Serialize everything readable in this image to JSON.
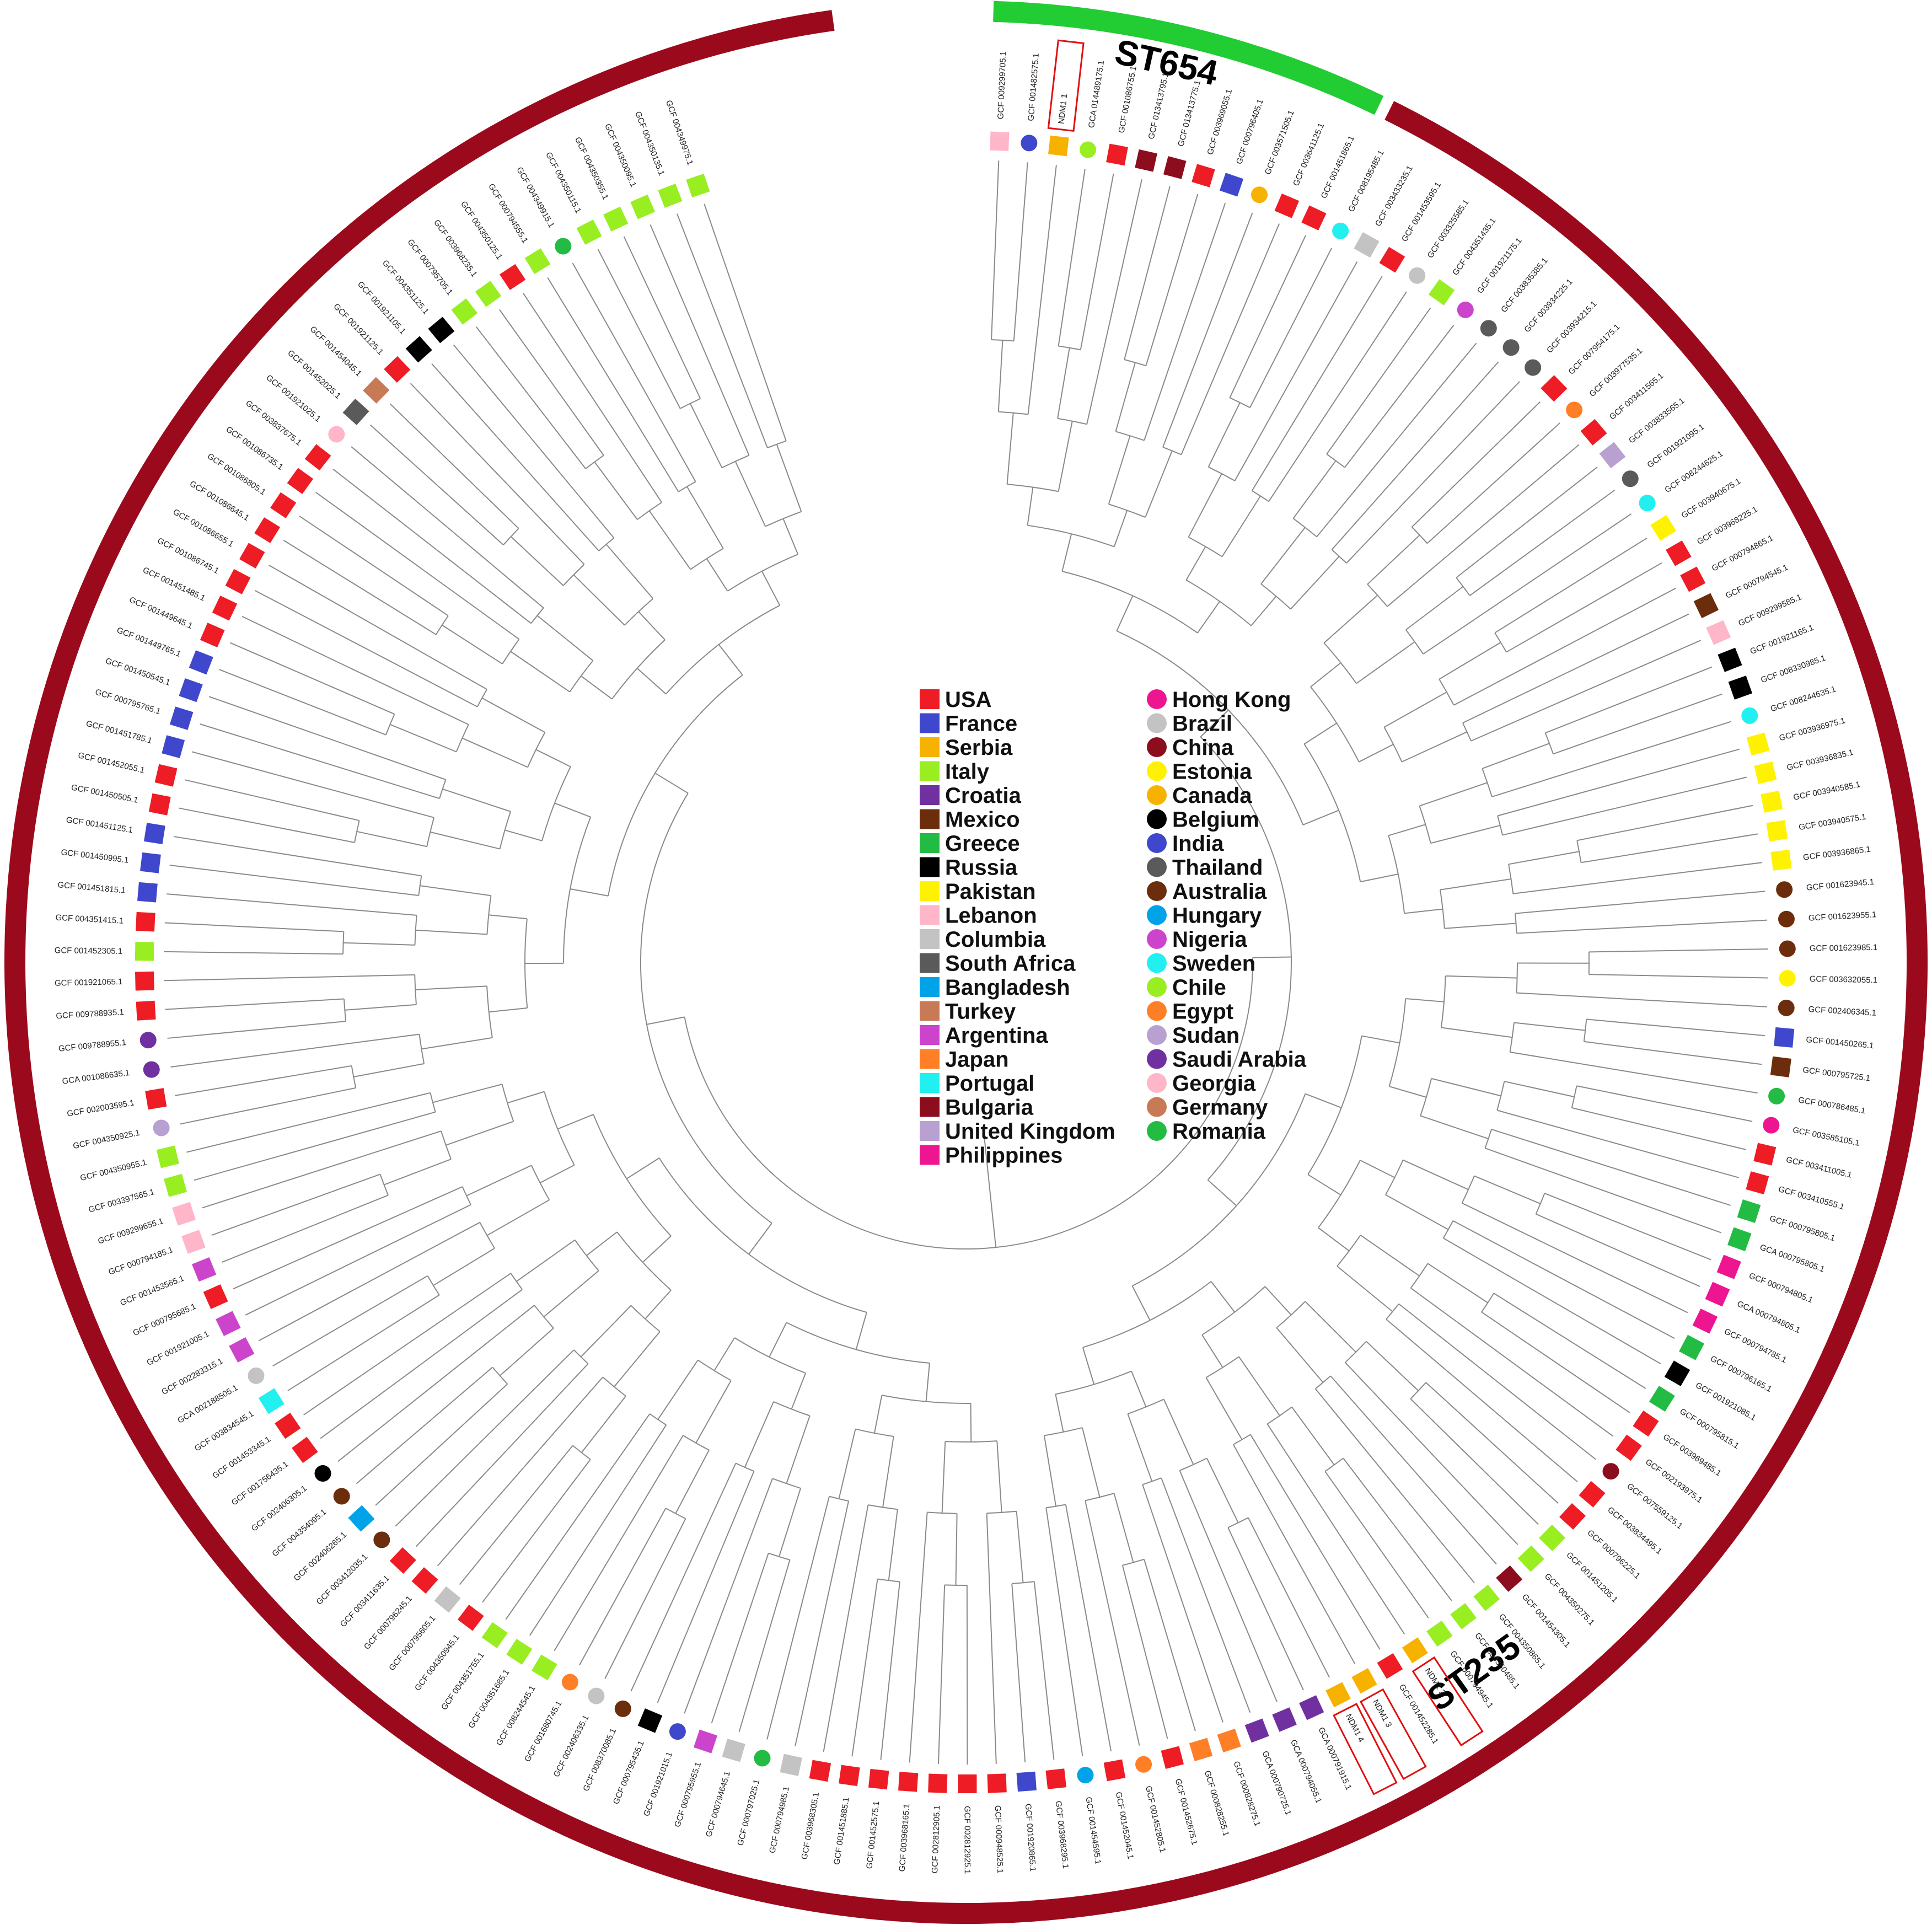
{
  "clades": [
    {
      "name": "ST654",
      "color": "#22cc33",
      "start_index": 0,
      "end_index": 11
    },
    {
      "name": "ST235",
      "color": "#9b0a1c",
      "start_index": 12,
      "end_index": 169
    }
  ],
  "legend": {
    "squares": [
      {
        "label": "USA",
        "color": "#ee1c24"
      },
      {
        "label": "France",
        "color": "#3f48cc"
      },
      {
        "label": "Serbia",
        "color": "#f7b200"
      },
      {
        "label": "Italy",
        "color": "#99ee22"
      },
      {
        "label": "Croatia",
        "color": "#7030a0"
      },
      {
        "label": "Mexico",
        "color": "#6b2d0c"
      },
      {
        "label": "Greece",
        "color": "#22bb44"
      },
      {
        "label": "Russia",
        "color": "#000000"
      },
      {
        "label": "Pakistan",
        "color": "#fff200"
      },
      {
        "label": "Lebanon",
        "color": "#ffb6c8"
      },
      {
        "label": "Columbia",
        "color": "#c3c3c3"
      },
      {
        "label": "South Africa",
        "color": "#5a5a5a"
      },
      {
        "label": "Bangladesh",
        "color": "#00a2e8"
      },
      {
        "label": "Turkey",
        "color": "#c77a55"
      },
      {
        "label": "Argentina",
        "color": "#cc44cc"
      },
      {
        "label": "Japan",
        "color": "#ff7f27"
      },
      {
        "label": "Portugal",
        "color": "#22f0f0"
      },
      {
        "label": "Bulgaria",
        "color": "#8b0d1e"
      },
      {
        "label": "United Kingdom",
        "color": "#b8a0d0"
      },
      {
        "label": "Philippines",
        "color": "#ee1590"
      }
    ],
    "circles": [
      {
        "label": "Hong Kong",
        "color": "#ee1590"
      },
      {
        "label": "Brazil",
        "color": "#c3c3c3"
      },
      {
        "label": "China",
        "color": "#8b0d1e"
      },
      {
        "label": "Estonia",
        "color": "#fff200"
      },
      {
        "label": "Canada",
        "color": "#f7b200"
      },
      {
        "label": "Belgium",
        "color": "#000000"
      },
      {
        "label": "India",
        "color": "#3f48cc"
      },
      {
        "label": "Thailand",
        "color": "#5a5a5a"
      },
      {
        "label": "Australia",
        "color": "#6b2d0c"
      },
      {
        "label": "Hungary",
        "color": "#00a2e8"
      },
      {
        "label": "Nigeria",
        "color": "#cc44cc"
      },
      {
        "label": "Sweden",
        "color": "#22f0f0"
      },
      {
        "label": "Chile",
        "color": "#99ee22"
      },
      {
        "label": "Egypt",
        "color": "#ff7f27"
      },
      {
        "label": "Sudan",
        "color": "#b8a0d0"
      },
      {
        "label": "Saudi Arabia",
        "color": "#7030a0"
      },
      {
        "label": "Georgia",
        "color": "#ffb6c8"
      },
      {
        "label": "Germany",
        "color": "#c77a55"
      },
      {
        "label": "Romania",
        "color": "#22bb44"
      }
    ]
  },
  "tips": [
    {
      "label": "GCF 009299705.1",
      "country": "Lebanon",
      "shape": "square"
    },
    {
      "label": "GCF 001482575.1",
      "country": "India",
      "shape": "circle"
    },
    {
      "label": "NDM1 1",
      "country": "Serbia",
      "shape": "square",
      "highlight": true
    },
    {
      "label": "GCA 014489175.1",
      "country": "Chile",
      "shape": "circle"
    },
    {
      "label": "GCF 001086755.1",
      "country": "USA",
      "shape": "square"
    },
    {
      "label": "GCF 013413795.1",
      "country": "Bulgaria",
      "shape": "square"
    },
    {
      "label": "GCF 013413775.1",
      "country": "Bulgaria",
      "shape": "square"
    },
    {
      "label": "GCF 003969055.1",
      "country": "USA",
      "shape": "square"
    },
    {
      "label": "GCF 000796405.1",
      "country": "France",
      "shape": "square"
    },
    {
      "label": "GCF 003571505.1",
      "country": "Canada",
      "shape": "circle"
    },
    {
      "label": "GCF 003641125.1",
      "country": "USA",
      "shape": "square"
    },
    {
      "label": "GCF 001451865.1",
      "country": "USA",
      "shape": "square"
    },
    {
      "label": "GCF 008195485.1",
      "country": "Sweden",
      "shape": "circle"
    },
    {
      "label": "GCF 003433235.1",
      "country": "Columbia",
      "shape": "square"
    },
    {
      "label": "GCF 001453595.1",
      "country": "USA",
      "shape": "square"
    },
    {
      "label": "GCF 003325585.1",
      "country": "Brazil",
      "shape": "circle"
    },
    {
      "label": "GCF 004351435.1",
      "country": "Italy",
      "shape": "square"
    },
    {
      "label": "GCF 001921175.1",
      "country": "Nigeria",
      "shape": "circle"
    },
    {
      "label": "GCF 003835385.1",
      "country": "Thailand",
      "shape": "circle"
    },
    {
      "label": "GCF 003934225.1",
      "country": "Thailand",
      "shape": "circle"
    },
    {
      "label": "GCF 003934215.1",
      "country": "Thailand",
      "shape": "circle"
    },
    {
      "label": "GCF 007954175.1",
      "country": "USA",
      "shape": "square"
    },
    {
      "label": "GCF 003977535.1",
      "country": "Egypt",
      "shape": "circle"
    },
    {
      "label": "GCF 003411565.1",
      "country": "USA",
      "shape": "square"
    },
    {
      "label": "GCF 003833565.1",
      "country": "United Kingdom",
      "shape": "square"
    },
    {
      "label": "GCF 001921095.1",
      "country": "Thailand",
      "shape": "circle"
    },
    {
      "label": "GCF 008244625.1",
      "country": "Sweden",
      "shape": "circle"
    },
    {
      "label": "GCF 003940675.1",
      "country": "Pakistan",
      "shape": "square"
    },
    {
      "label": "GCF 003968225.1",
      "country": "USA",
      "shape": "square"
    },
    {
      "label": "GCF 000794865.1",
      "country": "USA",
      "shape": "square"
    },
    {
      "label": "GCF 000794545.1",
      "country": "Mexico",
      "shape": "square"
    },
    {
      "label": "GCF 009299585.1",
      "country": "Lebanon",
      "shape": "square"
    },
    {
      "label": "GCF 001921165.1",
      "country": "Russia",
      "shape": "square"
    },
    {
      "label": "GCF 008330985.1",
      "country": "Russia",
      "shape": "square"
    },
    {
      "label": "GCF 008244635.1",
      "country": "Sweden",
      "shape": "circle"
    },
    {
      "label": "GCF 003936975.1",
      "country": "Pakistan",
      "shape": "square"
    },
    {
      "label": "GCF 003936835.1",
      "country": "Pakistan",
      "shape": "square"
    },
    {
      "label": "GCF 003940585.1",
      "country": "Pakistan",
      "shape": "square"
    },
    {
      "label": "GCF 003940575.1",
      "country": "Pakistan",
      "shape": "square"
    },
    {
      "label": "GCF 003936865.1",
      "country": "Pakistan",
      "shape": "square"
    },
    {
      "label": "GCF 001623945.1",
      "country": "Australia",
      "shape": "circle"
    },
    {
      "label": "GCF 001623955.1",
      "country": "Australia",
      "shape": "circle"
    },
    {
      "label": "GCF 001623985.1",
      "country": "Australia",
      "shape": "circle"
    },
    {
      "label": "GCF 003632055.1",
      "country": "Estonia",
      "shape": "circle"
    },
    {
      "label": "GCF 002406345.1",
      "country": "Australia",
      "shape": "circle"
    },
    {
      "label": "GCF 001450265.1",
      "country": "France",
      "shape": "square"
    },
    {
      "label": "GCF 000795725.1",
      "country": "Mexico",
      "shape": "square"
    },
    {
      "label": "GCF 000786485.1",
      "country": "Romania",
      "shape": "circle"
    },
    {
      "label": "GCF 003585105.1",
      "country": "Hong Kong",
      "shape": "circle"
    },
    {
      "label": "GCF 003411005.1",
      "country": "USA",
      "shape": "square"
    },
    {
      "label": "GCF 003410555.1",
      "country": "USA",
      "shape": "square"
    },
    {
      "label": "GCF 000795805.1",
      "country": "Greece",
      "shape": "square"
    },
    {
      "label": "GCA 000795805.1",
      "country": "Greece",
      "shape": "square"
    },
    {
      "label": "GCF 000794805.1",
      "country": "Philippines",
      "shape": "square"
    },
    {
      "label": "GCA 000794805.1",
      "country": "Philippines",
      "shape": "square"
    },
    {
      "label": "GCF 000794785.1",
      "country": "Philippines",
      "shape": "square"
    },
    {
      "label": "GCF 000796165.1",
      "country": "Greece",
      "shape": "square"
    },
    {
      "label": "GCF 001921085.1",
      "country": "Russia",
      "shape": "square"
    },
    {
      "label": "GCF 000795815.1",
      "country": "Greece",
      "shape": "square"
    },
    {
      "label": "GCF 003969485.1",
      "country": "USA",
      "shape": "square"
    },
    {
      "label": "GCF 002193975.1",
      "country": "USA",
      "shape": "square"
    },
    {
      "label": "GCF 007559125.1",
      "country": "China",
      "shape": "circle"
    },
    {
      "label": "GCF 003834495.1",
      "country": "USA",
      "shape": "square"
    },
    {
      "label": "GCF 000796225.1",
      "country": "USA",
      "shape": "square"
    },
    {
      "label": "GCF 001451205.1",
      "country": "Italy",
      "shape": "square"
    },
    {
      "label": "GCF 004350275.1",
      "country": "Italy",
      "shape": "square"
    },
    {
      "label": "GCF 001454305.1",
      "country": "Bulgaria",
      "shape": "square"
    },
    {
      "label": "GCF 004350865.1",
      "country": "Italy",
      "shape": "square"
    },
    {
      "label": "GCF 004350485.1",
      "country": "Italy",
      "shape": "square"
    },
    {
      "label": "GCF 000794945.1",
      "country": "Italy",
      "shape": "square"
    },
    {
      "label": "NDM1 2",
      "country": "Serbia",
      "shape": "square",
      "highlight": true
    },
    {
      "label": "GCF 001452285.1",
      "country": "USA",
      "shape": "square"
    },
    {
      "label": "NDM1 3",
      "country": "Serbia",
      "shape": "square",
      "highlight": true
    },
    {
      "label": "NDM1 4",
      "country": "Serbia",
      "shape": "square",
      "highlight": true
    },
    {
      "label": "GCA 000791915.1",
      "country": "Croatia",
      "shape": "square"
    },
    {
      "label": "GCA 000794055.1",
      "country": "Croatia",
      "shape": "square"
    },
    {
      "label": "GCA 000790725.1",
      "country": "Croatia",
      "shape": "square"
    },
    {
      "label": "GCF 000828275.1",
      "country": "Japan",
      "shape": "square"
    },
    {
      "label": "GCF 000828255.1",
      "country": "Japan",
      "shape": "square"
    },
    {
      "label": "GCF 001452675.1",
      "country": "USA",
      "shape": "square"
    },
    {
      "label": "GCF 001452805.1",
      "country": "Egypt",
      "shape": "circle"
    },
    {
      "label": "GCF 001452045.1",
      "country": "USA",
      "shape": "square"
    },
    {
      "label": "GCF 001454595.1",
      "country": "Hungary",
      "shape": "circle"
    },
    {
      "label": "GCF 003968295.1",
      "country": "USA",
      "shape": "square"
    },
    {
      "label": "GCF 001920865.1",
      "country": "France",
      "shape": "square"
    },
    {
      "label": "GCF 000948525.1",
      "country": "USA",
      "shape": "square"
    },
    {
      "label": "GCF 002812925.1",
      "country": "USA",
      "shape": "square"
    },
    {
      "label": "GCF 002812905.1",
      "country": "USA",
      "shape": "square"
    },
    {
      "label": "GCF 003968165.1",
      "country": "USA",
      "shape": "square"
    },
    {
      "label": "GCF 001452575.1",
      "country": "USA",
      "shape": "square"
    },
    {
      "label": "GCF 001451885.1",
      "country": "USA",
      "shape": "square"
    },
    {
      "label": "GCF 003968305.1",
      "country": "USA",
      "shape": "square"
    },
    {
      "label": "GCF 000794985.1",
      "country": "Columbia",
      "shape": "square"
    },
    {
      "label": "GCF 000797025.1",
      "country": "Romania",
      "shape": "circle"
    },
    {
      "label": "GCF 000794645.1",
      "country": "Columbia",
      "shape": "square"
    },
    {
      "label": "GCF 000795955.1",
      "country": "Argentina",
      "shape": "square"
    },
    {
      "label": "GCF 001921015.1",
      "country": "India",
      "shape": "circle"
    },
    {
      "label": "GCF 000795435.1",
      "country": "Russia",
      "shape": "square"
    },
    {
      "label": "GCF 008370085.1",
      "country": "Australia",
      "shape": "circle"
    },
    {
      "label": "GCF 002406335.1",
      "country": "Brazil",
      "shape": "circle"
    },
    {
      "label": "GCF 001680745.1",
      "country": "Egypt",
      "shape": "circle"
    },
    {
      "label": "GCF 008244545.1",
      "country": "Italy",
      "shape": "square"
    },
    {
      "label": "GCF 004351685.1",
      "country": "Italy",
      "shape": "square"
    },
    {
      "label": "GCF 004351755.1",
      "country": "Italy",
      "shape": "square"
    },
    {
      "label": "GCF 004350945.1",
      "country": "USA",
      "shape": "square"
    },
    {
      "label": "GCF 000795605.1",
      "country": "Columbia",
      "shape": "square"
    },
    {
      "label": "GCF 000796245.1",
      "country": "USA",
      "shape": "square"
    },
    {
      "label": "GCF 003411635.1",
      "country": "USA",
      "shape": "square"
    },
    {
      "label": "GCF 003412035.1",
      "country": "Australia",
      "shape": "circle"
    },
    {
      "label": "GCF 002406265.1",
      "country": "Bangladesh",
      "shape": "square"
    },
    {
      "label": "GCF 004354095.1",
      "country": "Australia",
      "shape": "circle"
    },
    {
      "label": "GCF 002406305.1",
      "country": "Belgium",
      "shape": "circle"
    },
    {
      "label": "GCF 001756435.1",
      "country": "USA",
      "shape": "square"
    },
    {
      "label": "GCF 001453345.1",
      "country": "USA",
      "shape": "square"
    },
    {
      "label": "GCF 003834545.1",
      "country": "Portugal",
      "shape": "square"
    },
    {
      "label": "GCA 002188505.1",
      "country": "Brazil",
      "shape": "circle"
    },
    {
      "label": "GCF 002283315.1",
      "country": "Argentina",
      "shape": "square"
    },
    {
      "label": "GCF 001921005.1",
      "country": "Argentina",
      "shape": "square"
    },
    {
      "label": "GCF 000795685.1",
      "country": "USA",
      "shape": "square"
    },
    {
      "label": "GCF 001453565.1",
      "country": "Argentina",
      "shape": "square"
    },
    {
      "label": "GCF 000794185.1",
      "country": "Lebanon",
      "shape": "square"
    },
    {
      "label": "GCF 009299655.1",
      "country": "Lebanon",
      "shape": "square"
    },
    {
      "label": "GCF 003397565.1",
      "country": "Italy",
      "shape": "square"
    },
    {
      "label": "GCF 004350955.1",
      "country": "Italy",
      "shape": "square"
    },
    {
      "label": "GCF 004350925.1",
      "country": "Sudan",
      "shape": "circle"
    },
    {
      "label": "GCF 002003595.1",
      "country": "USA",
      "shape": "square"
    },
    {
      "label": "GCA 001086635.1",
      "country": "Saudi Arabia",
      "shape": "circle"
    },
    {
      "label": "GCF 009788955.1",
      "country": "Saudi Arabia",
      "shape": "circle"
    },
    {
      "label": "GCF 009788935.1",
      "country": "USA",
      "shape": "square"
    },
    {
      "label": "GCF 001921065.1",
      "country": "USA",
      "shape": "square"
    },
    {
      "label": "GCF 001452305.1",
      "country": "Italy",
      "shape": "square"
    },
    {
      "label": "GCF 004351415.1",
      "country": "USA",
      "shape": "square"
    },
    {
      "label": "GCF 001451815.1",
      "country": "France",
      "shape": "square"
    },
    {
      "label": "GCF 001450995.1",
      "country": "France",
      "shape": "square"
    },
    {
      "label": "GCF 001451125.1",
      "country": "France",
      "shape": "square"
    },
    {
      "label": "GCF 001450505.1",
      "country": "USA",
      "shape": "square"
    },
    {
      "label": "GCF 001452055.1",
      "country": "USA",
      "shape": "square"
    },
    {
      "label": "GCF 001451785.1",
      "country": "France",
      "shape": "square"
    },
    {
      "label": "GCF 000795765.1",
      "country": "France",
      "shape": "square"
    },
    {
      "label": "GCF 001450545.1",
      "country": "France",
      "shape": "square"
    },
    {
      "label": "GCF 001449765.1",
      "country": "France",
      "shape": "square"
    },
    {
      "label": "GCF 001449645.1",
      "country": "USA",
      "shape": "square"
    },
    {
      "label": "GCF 001451485.1",
      "country": "USA",
      "shape": "square"
    },
    {
      "label": "GCF 001086745.1",
      "country": "USA",
      "shape": "square"
    },
    {
      "label": "GCF 001086655.1",
      "country": "USA",
      "shape": "square"
    },
    {
      "label": "GCF 001086645.1",
      "country": "USA",
      "shape": "square"
    },
    {
      "label": "GCF 001086805.1",
      "country": "USA",
      "shape": "square"
    },
    {
      "label": "GCF 001086735.1",
      "country": "USA",
      "shape": "square"
    },
    {
      "label": "GCF 003837675.1",
      "country": "USA",
      "shape": "square"
    },
    {
      "label": "GCF 001921025.1",
      "country": "Georgia",
      "shape": "circle"
    },
    {
      "label": "GCF 001452025.1",
      "country": "South Africa",
      "shape": "square"
    },
    {
      "label": "GCF 001454045.1",
      "country": "Turkey",
      "shape": "square"
    },
    {
      "label": "GCF 001921125.1",
      "country": "USA",
      "shape": "square"
    },
    {
      "label": "GCF 001921105.1",
      "country": "Russia",
      "shape": "square"
    },
    {
      "label": "GCF 004351125.1",
      "country": "Russia",
      "shape": "square"
    },
    {
      "label": "GCF 000795705.1",
      "country": "Italy",
      "shape": "square"
    },
    {
      "label": "GCF 003968235.1",
      "country": "Italy",
      "shape": "square"
    },
    {
      "label": "GCF 004350125.1",
      "country": "USA",
      "shape": "square"
    },
    {
      "label": "GCF 000794555.1",
      "country": "Italy",
      "shape": "square"
    },
    {
      "label": "GCF 004349915.1",
      "country": "Romania",
      "shape": "circle"
    },
    {
      "label": "GCF 004350115.1",
      "country": "Italy",
      "shape": "square"
    },
    {
      "label": "GCF 004350355.1",
      "country": "Italy",
      "shape": "square"
    },
    {
      "label": "GCF 004350095.1",
      "country": "Italy",
      "shape": "square"
    },
    {
      "label": "GCF 004350135.1",
      "country": "Italy",
      "shape": "square"
    },
    {
      "label": "GCF 004349975.1",
      "country": "Italy",
      "shape": "square"
    }
  ]
}
